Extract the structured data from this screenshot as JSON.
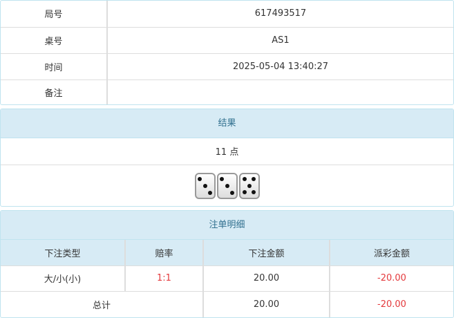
{
  "info": [
    {
      "label": "局号",
      "value": "617493517"
    },
    {
      "label": "桌号",
      "value": "AS1"
    },
    {
      "label": "时间",
      "value": "2025-05-04 13:40:27"
    },
    {
      "label": "备注",
      "value": ""
    }
  ],
  "result": {
    "title": "结果",
    "points": "11 点",
    "dice": [
      3,
      3,
      5
    ]
  },
  "bets": {
    "title": "注单明细",
    "headers": [
      "下注类型",
      "赔率",
      "下注金额",
      "派彩金额"
    ],
    "rows": [
      {
        "type": "大/小(小)",
        "odds": "1:1",
        "amount": "20.00",
        "payout": "-20.00"
      }
    ],
    "total": {
      "label": "总计",
      "amount": "20.00",
      "payout": "-20.00"
    }
  },
  "colors": {
    "negative": "#e4393c",
    "header_bg": "#d7ebf5"
  }
}
